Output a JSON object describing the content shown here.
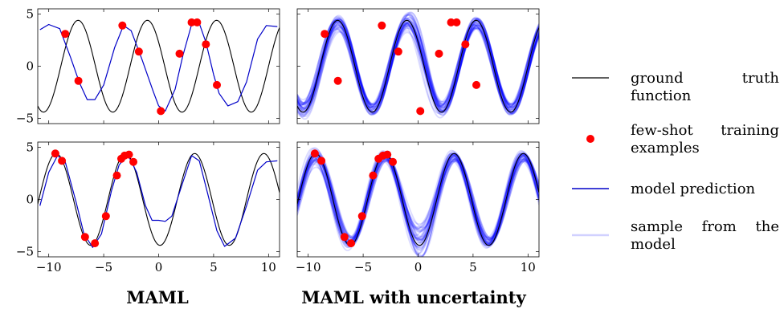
{
  "captions": {
    "left": "MAML",
    "right": "MAML with uncertainty"
  },
  "legend": {
    "ground_truth": "ground truth function",
    "training": "few-shot training examples",
    "prediction": "model prediction",
    "sample": "sample from the model"
  },
  "colors": {
    "ground_truth": "#000000",
    "training": "#ff0000",
    "prediction": "#0000c8",
    "sample": "#0000ff"
  },
  "chart_data": [
    {
      "type": "line",
      "panel": "top-left",
      "xlim": [
        -11,
        11
      ],
      "ylim": [
        -5.5,
        5.5
      ],
      "xticks": [
        "−10",
        "−5",
        "0",
        "5",
        "10"
      ],
      "yticks": [
        "5",
        "0",
        "−5"
      ],
      "ground_truth": {
        "amplitude": 4.4,
        "period": 6.3,
        "phase": -2.6
      },
      "prediction": [
        [
          -10.8,
          3.5
        ],
        [
          -10,
          4.0
        ],
        [
          -9,
          3.6
        ],
        [
          -8,
          0.8
        ],
        [
          -7.2,
          -1.6
        ],
        [
          -6.5,
          -3.2
        ],
        [
          -5.8,
          -3.2
        ],
        [
          -5,
          -1.8
        ],
        [
          -4,
          1.8
        ],
        [
          -3.2,
          3.9
        ],
        [
          -2.5,
          3.4
        ],
        [
          -1.5,
          0.6
        ],
        [
          -0.5,
          -2.4
        ],
        [
          0,
          -3.8
        ],
        [
          0.6,
          -4.3
        ],
        [
          1.5,
          -2.2
        ],
        [
          2.2,
          1.0
        ],
        [
          3,
          4.0
        ],
        [
          3.6,
          4.4
        ],
        [
          4.3,
          2.3
        ],
        [
          5,
          -0.8
        ],
        [
          5.5,
          -2.6
        ],
        [
          6.3,
          -3.8
        ],
        [
          7.2,
          -3.4
        ],
        [
          8,
          -1.5
        ],
        [
          9,
          2.6
        ],
        [
          9.8,
          3.9
        ],
        [
          10.8,
          3.8
        ]
      ],
      "training_points": [
        [
          -8.5,
          3.1
        ],
        [
          -7.3,
          -1.4
        ],
        [
          -3.3,
          3.9
        ],
        [
          -1.8,
          1.4
        ],
        [
          0.2,
          -4.3
        ],
        [
          1.9,
          1.2
        ],
        [
          3.0,
          4.2
        ],
        [
          3.5,
          4.2
        ],
        [
          4.3,
          2.1
        ],
        [
          5.3,
          -1.8
        ]
      ]
    },
    {
      "type": "line",
      "panel": "top-right",
      "xlim": [
        -11,
        11
      ],
      "ylim": [
        -5.5,
        5.5
      ],
      "xticks": [
        "−10",
        "−5",
        "0",
        "5",
        "10"
      ],
      "yticks": [
        "5",
        "0",
        "−5"
      ],
      "ground_truth": {
        "amplitude": 4.4,
        "period": 6.3,
        "phase": -2.6
      },
      "prediction_spread": 0.25,
      "sample_count": 40,
      "training_points": [
        [
          -8.5,
          3.1
        ],
        [
          -7.3,
          -1.4
        ],
        [
          -3.3,
          3.9
        ],
        [
          -1.8,
          1.4
        ],
        [
          0.2,
          -4.3
        ],
        [
          1.9,
          1.2
        ],
        [
          3.0,
          4.2
        ],
        [
          3.5,
          4.2
        ],
        [
          4.3,
          2.1
        ],
        [
          5.3,
          -1.8
        ]
      ]
    },
    {
      "type": "line",
      "panel": "bottom-left",
      "xlim": [
        -11,
        11
      ],
      "ylim": [
        -5.5,
        5.5
      ],
      "xticks": [
        "−10",
        "−5",
        "0",
        "5",
        "10"
      ],
      "yticks": [
        "5",
        "0",
        "−5"
      ],
      "ground_truth": {
        "amplitude": 4.4,
        "period": 6.3,
        "phase": -4.6
      },
      "prediction": [
        [
          -10.8,
          -0.6
        ],
        [
          -10,
          2.6
        ],
        [
          -9.2,
          4.2
        ],
        [
          -8.5,
          3.6
        ],
        [
          -7.5,
          -0.3
        ],
        [
          -6.8,
          -3.3
        ],
        [
          -6,
          -4.6
        ],
        [
          -5.2,
          -3.3
        ],
        [
          -4.3,
          0.8
        ],
        [
          -3.6,
          3.3
        ],
        [
          -2.8,
          4.3
        ],
        [
          -2,
          2.6
        ],
        [
          -1.2,
          -0.6
        ],
        [
          -0.6,
          -2.0
        ],
        [
          0,
          -2.0
        ],
        [
          0.6,
          -2.1
        ],
        [
          1.2,
          -1.6
        ],
        [
          2,
          1.0
        ],
        [
          3,
          4.2
        ],
        [
          3.7,
          3.7
        ],
        [
          4.5,
          0.4
        ],
        [
          5.3,
          -3.0
        ],
        [
          6,
          -4.5
        ],
        [
          7,
          -3.7
        ],
        [
          8,
          -0.6
        ],
        [
          9,
          2.8
        ],
        [
          9.8,
          3.6
        ],
        [
          10.8,
          3.7
        ]
      ],
      "training_points": [
        [
          -9.4,
          4.4
        ],
        [
          -8.8,
          3.7
        ],
        [
          -6.7,
          -3.6
        ],
        [
          -5.8,
          -4.2
        ],
        [
          -4.8,
          -1.6
        ],
        [
          -3.8,
          2.3
        ],
        [
          -3.4,
          3.9
        ],
        [
          -3.1,
          4.2
        ],
        [
          -2.7,
          4.3
        ],
        [
          -2.3,
          3.6
        ]
      ]
    },
    {
      "type": "line",
      "panel": "bottom-right",
      "xlim": [
        -11,
        11
      ],
      "ylim": [
        -5.5,
        5.5
      ],
      "xticks": [
        "−10",
        "−5",
        "0",
        "5",
        "10"
      ],
      "yticks": [
        "5",
        "0",
        "−5"
      ],
      "ground_truth": {
        "amplitude": 4.4,
        "period": 6.3,
        "phase": -4.6
      },
      "prediction_spread": 0.35,
      "sample_count": 40,
      "training_points": [
        [
          -9.4,
          4.4
        ],
        [
          -8.8,
          3.7
        ],
        [
          -6.7,
          -3.6
        ],
        [
          -6.1,
          -4.2
        ],
        [
          -5.1,
          -1.6
        ],
        [
          -4.1,
          2.3
        ],
        [
          -3.6,
          3.9
        ],
        [
          -3.2,
          4.2
        ],
        [
          -2.8,
          4.3
        ],
        [
          -2.3,
          3.6
        ]
      ]
    }
  ]
}
